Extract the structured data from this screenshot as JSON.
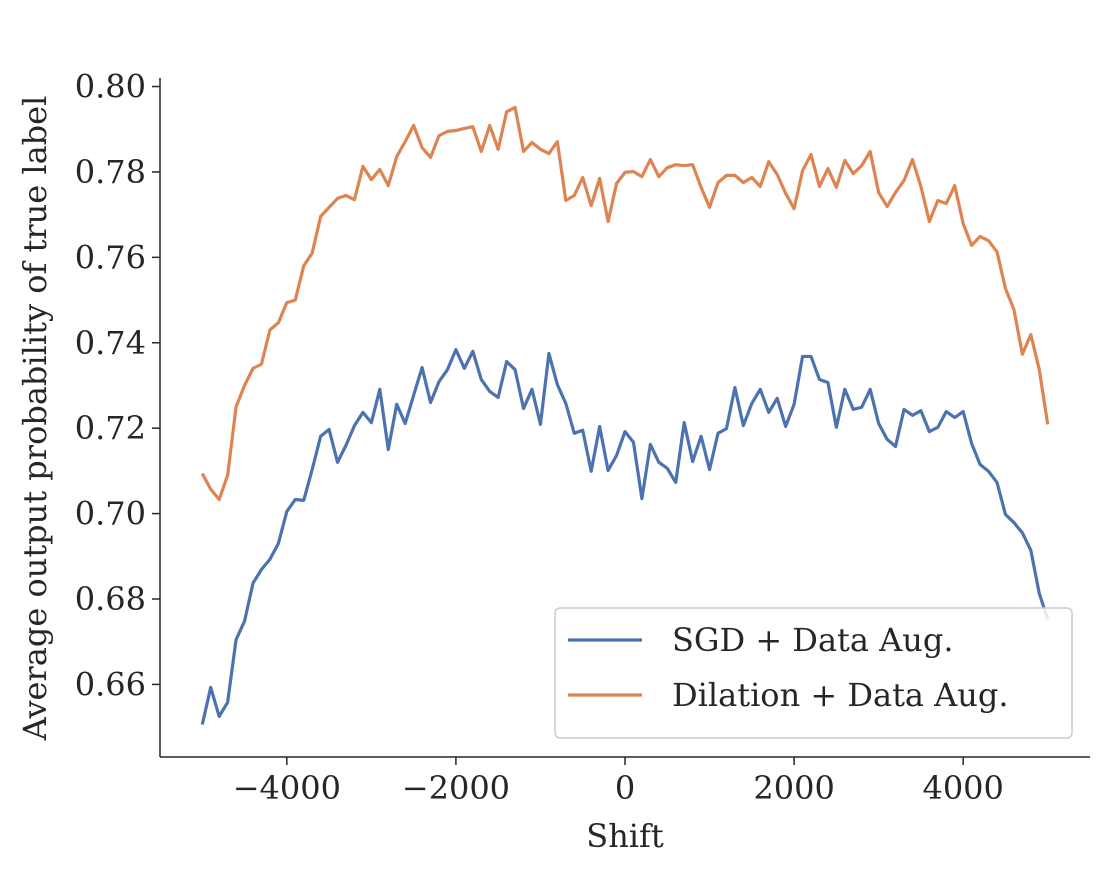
{
  "chart_data": {
    "type": "line",
    "x_label": "Shift",
    "y_label": "Average output probability of true label",
    "x": [
      -5000,
      -4900,
      -4800,
      -4700,
      -4600,
      -4500,
      -4400,
      -4300,
      -4200,
      -4100,
      -4000,
      -3900,
      -3800,
      -3700,
      -3600,
      -3500,
      -3400,
      -3300,
      -3200,
      -3100,
      -3000,
      -2900,
      -2800,
      -2700,
      -2600,
      -2500,
      -2400,
      -2300,
      -2200,
      -2100,
      -2000,
      -1900,
      -1800,
      -1700,
      -1600,
      -1500,
      -1400,
      -1300,
      -1200,
      -1100,
      -1000,
      -900,
      -800,
      -700,
      -600,
      -500,
      -400,
      -300,
      -200,
      -100,
      0,
      100,
      200,
      300,
      400,
      500,
      600,
      700,
      800,
      900,
      1000,
      1100,
      1200,
      1300,
      1400,
      1500,
      1600,
      1700,
      1800,
      1900,
      2000,
      2100,
      2200,
      2300,
      2400,
      2500,
      2600,
      2700,
      2800,
      2900,
      3000,
      3100,
      3200,
      3300,
      3400,
      3500,
      3600,
      3700,
      3800,
      3900,
      4000,
      4100,
      4200,
      4300,
      4400,
      4500,
      4600,
      4700,
      4800,
      4900,
      5000
    ],
    "series": [
      {
        "name": "SGD + Data Aug.",
        "color": "#4c72b0",
        "values": [
          0.6506,
          0.6593,
          0.6525,
          0.6558,
          0.6705,
          0.6748,
          0.6837,
          0.6869,
          0.6893,
          0.693,
          0.7005,
          0.7033,
          0.7031,
          0.7103,
          0.7181,
          0.7197,
          0.712,
          0.716,
          0.7206,
          0.7237,
          0.7213,
          0.7291,
          0.715,
          0.7256,
          0.7211,
          0.7277,
          0.7342,
          0.726,
          0.7309,
          0.7337,
          0.7384,
          0.734,
          0.738,
          0.7314,
          0.7286,
          0.7272,
          0.7356,
          0.7337,
          0.7246,
          0.7291,
          0.7209,
          0.7375,
          0.7302,
          0.7258,
          0.7188,
          0.7195,
          0.7099,
          0.7204,
          0.7101,
          0.7136,
          0.7192,
          0.7167,
          0.7035,
          0.7162,
          0.712,
          0.7106,
          0.7073,
          0.7213,
          0.7122,
          0.7181,
          0.7103,
          0.7188,
          0.7199,
          0.7295,
          0.7206,
          0.7258,
          0.7291,
          0.7237,
          0.727,
          0.7204,
          0.7256,
          0.7368,
          0.7368,
          0.7314,
          0.7307,
          0.7202,
          0.7291,
          0.7244,
          0.7249,
          0.7291,
          0.7211,
          0.7174,
          0.7157,
          0.7244,
          0.723,
          0.7241,
          0.7192,
          0.7202,
          0.7239,
          0.7225,
          0.7239,
          0.7164,
          0.7115,
          0.7099,
          0.7073,
          0.6998,
          0.6979,
          0.6955,
          0.6914,
          0.6813,
          0.6752
        ]
      },
      {
        "name": "Dilation + Data Aug.",
        "color": "#dd8452",
        "values": [
          0.7094,
          0.7057,
          0.7033,
          0.709,
          0.725,
          0.73,
          0.734,
          0.735,
          0.743,
          0.7447,
          0.7494,
          0.75,
          0.758,
          0.761,
          0.7696,
          0.7717,
          0.7738,
          0.7745,
          0.7735,
          0.7813,
          0.7782,
          0.7806,
          0.7768,
          0.7836,
          0.7871,
          0.7909,
          0.7857,
          0.7834,
          0.7885,
          0.7895,
          0.7897,
          0.7902,
          0.7906,
          0.7848,
          0.7909,
          0.7853,
          0.7941,
          0.7951,
          0.7848,
          0.7869,
          0.7853,
          0.7843,
          0.7871,
          0.7733,
          0.7745,
          0.7787,
          0.7721,
          0.7785,
          0.7684,
          0.7773,
          0.7799,
          0.7801,
          0.7789,
          0.7829,
          0.7789,
          0.781,
          0.7817,
          0.7815,
          0.7817,
          0.7764,
          0.7717,
          0.7775,
          0.7792,
          0.7792,
          0.7775,
          0.7787,
          0.7766,
          0.7824,
          0.7794,
          0.775,
          0.7714,
          0.7803,
          0.7841,
          0.7766,
          0.7808,
          0.7764,
          0.7827,
          0.7796,
          0.7815,
          0.7848,
          0.7752,
          0.7719,
          0.7752,
          0.778,
          0.7829,
          0.7766,
          0.7684,
          0.7733,
          0.7726,
          0.7768,
          0.7679,
          0.7628,
          0.7649,
          0.7639,
          0.7613,
          0.7527,
          0.7478,
          0.7373,
          0.7419,
          0.7337,
          0.7209
        ]
      }
    ],
    "xlim": [
      -5500,
      5500
    ],
    "ylim": [
      0.643,
      0.802
    ],
    "xticks": [
      {
        "value": -4000,
        "label": "−4000"
      },
      {
        "value": -2000,
        "label": "−2000"
      },
      0,
      2000,
      4000
    ],
    "yticks": [
      0.66,
      0.68,
      {
        "value": 0.7,
        "label": "0.70"
      },
      0.72,
      0.74,
      0.76,
      0.78,
      {
        "value": 0.8,
        "label": "0.80"
      }
    ],
    "legend": "lower right"
  }
}
